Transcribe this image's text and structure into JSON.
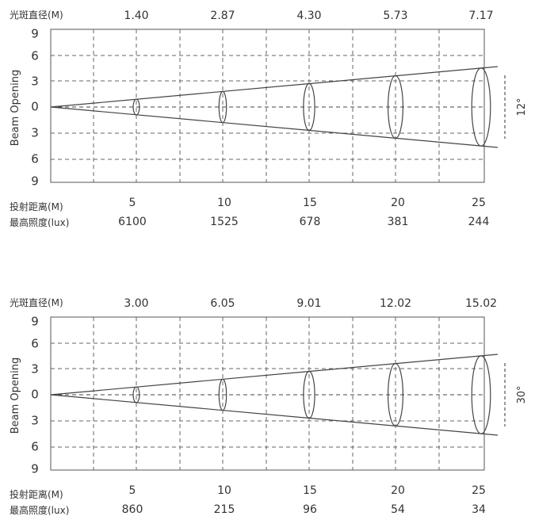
{
  "chart_data": [
    {
      "type": "beam-diagram",
      "spot_label": "光斑直径(M)",
      "spot_diameters": [
        "1.40",
        "2.87",
        "4.30",
        "5.73",
        "7.17"
      ],
      "y_axis_label": "Beam Opening",
      "y_ticks": [
        "9",
        "6",
        "3",
        "0",
        "3",
        "6",
        "9"
      ],
      "distance_label": "投射距离(M)",
      "distances": [
        "5",
        "10",
        "15",
        "20",
        "25"
      ],
      "illuminance_label": "最高照度(lux)",
      "illuminance": [
        "6100",
        "1525",
        "678",
        "381",
        "244"
      ],
      "beam_angle": "12°",
      "beam_angle_deg": 12,
      "max_distance": 25
    },
    {
      "type": "beam-diagram",
      "spot_label": "光斑直径(M)",
      "spot_diameters": [
        "3.00",
        "6.05",
        "9.01",
        "12.02",
        "15.02"
      ],
      "y_axis_label": "Beam Opening",
      "y_ticks": [
        "9",
        "6",
        "3",
        "0",
        "3",
        "6",
        "9"
      ],
      "distance_label": "投射距离(M)",
      "distances": [
        "5",
        "10",
        "15",
        "20",
        "25"
      ],
      "illuminance_label": "最高照度(lux)",
      "illuminance": [
        "860",
        "215",
        "96",
        "54",
        "34"
      ],
      "beam_angle": "30°",
      "beam_angle_deg": 30,
      "max_distance": 25
    }
  ]
}
